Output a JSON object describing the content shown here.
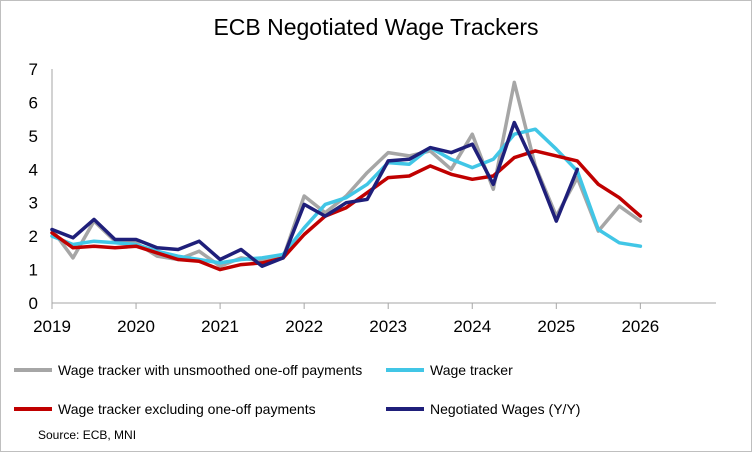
{
  "chart_data": {
    "type": "line",
    "title": "ECB Negotiated Wage Trackers",
    "source": "Source: ECB, MNI",
    "xlim": [
      2019,
      2026.9
    ],
    "ylim": [
      0,
      7
    ],
    "yticks": [
      "0",
      "1",
      "2",
      "3",
      "4",
      "5",
      "6",
      "7"
    ],
    "xticks": [
      {
        "value": 2019,
        "label": "2019"
      },
      {
        "value": 2020,
        "label": "2020"
      },
      {
        "value": 2021,
        "label": "2021"
      },
      {
        "value": 2022,
        "label": "2022"
      },
      {
        "value": 2023,
        "label": "2023"
      },
      {
        "value": 2024,
        "label": "2024"
      },
      {
        "value": 2025,
        "label": "2025"
      },
      {
        "value": 2026,
        "label": "2026"
      }
    ],
    "grid": false,
    "legend_position": "bottom",
    "series": [
      {
        "name": "Wage tracker with unsmoothed one-off payments",
        "color": "#a6a6a6",
        "x": [
          2019.0,
          2019.25,
          2019.5,
          2019.75,
          2020.0,
          2020.25,
          2020.5,
          2020.75,
          2021.0,
          2021.25,
          2021.5,
          2021.75,
          2022.0,
          2022.25,
          2022.5,
          2022.75,
          2023.0,
          2023.25,
          2023.5,
          2023.75,
          2024.0,
          2024.25,
          2024.5,
          2024.75,
          2025.0,
          2025.25,
          2025.5,
          2025.75,
          2026.0
        ],
        "y": [
          2.2,
          1.35,
          2.45,
          1.85,
          1.8,
          1.4,
          1.3,
          1.55,
          1.1,
          1.35,
          1.25,
          1.35,
          3.2,
          2.7,
          3.2,
          3.9,
          4.5,
          4.4,
          4.55,
          4.0,
          5.05,
          3.4,
          6.6,
          4.1,
          2.6,
          3.75,
          2.15,
          2.9,
          2.45
        ]
      },
      {
        "name": "Wage tracker",
        "color": "#41c6e6",
        "x": [
          2019.0,
          2019.25,
          2019.5,
          2019.75,
          2020.0,
          2020.25,
          2020.5,
          2020.75,
          2021.0,
          2021.25,
          2021.5,
          2021.75,
          2022.0,
          2022.25,
          2022.5,
          2022.75,
          2023.0,
          2023.25,
          2023.5,
          2023.75,
          2024.0,
          2024.25,
          2024.5,
          2024.75,
          2025.0,
          2025.25,
          2025.5,
          2025.75,
          2026.0
        ],
        "y": [
          2.0,
          1.75,
          1.85,
          1.8,
          1.75,
          1.55,
          1.4,
          1.3,
          1.2,
          1.3,
          1.35,
          1.45,
          2.25,
          2.95,
          3.15,
          3.55,
          4.2,
          4.15,
          4.65,
          4.3,
          4.05,
          4.3,
          5.05,
          5.2,
          4.6,
          3.95,
          2.2,
          1.8,
          1.7
        ]
      },
      {
        "name": "Wage tracker excluding one-off payments",
        "color": "#c00000",
        "x": [
          2019.0,
          2019.25,
          2019.5,
          2019.75,
          2020.0,
          2020.25,
          2020.5,
          2020.75,
          2021.0,
          2021.25,
          2021.5,
          2021.75,
          2022.0,
          2022.25,
          2022.5,
          2022.75,
          2023.0,
          2023.25,
          2023.5,
          2023.75,
          2024.0,
          2024.25,
          2024.5,
          2024.75,
          2025.0,
          2025.25,
          2025.5,
          2025.75,
          2026.0
        ],
        "y": [
          2.1,
          1.65,
          1.7,
          1.65,
          1.7,
          1.5,
          1.3,
          1.25,
          1.0,
          1.15,
          1.2,
          1.35,
          2.05,
          2.6,
          2.85,
          3.3,
          3.75,
          3.8,
          4.1,
          3.85,
          3.7,
          3.8,
          4.35,
          4.55,
          4.4,
          4.25,
          3.55,
          3.15,
          2.6
        ]
      },
      {
        "name": "Negotiated Wages (Y/Y)",
        "color": "#1f1f7a",
        "x": [
          2019.0,
          2019.25,
          2019.5,
          2019.75,
          2020.0,
          2020.25,
          2020.5,
          2020.75,
          2021.0,
          2021.25,
          2021.5,
          2021.75,
          2022.0,
          2022.25,
          2022.5,
          2022.75,
          2023.0,
          2023.25,
          2023.5,
          2023.75,
          2024.0,
          2024.25,
          2024.5,
          2024.75,
          2025.0,
          2025.25
        ],
        "y": [
          2.2,
          1.95,
          2.5,
          1.9,
          1.9,
          1.65,
          1.6,
          1.85,
          1.3,
          1.6,
          1.1,
          1.35,
          2.95,
          2.6,
          3.0,
          3.1,
          4.25,
          4.3,
          4.65,
          4.5,
          4.75,
          3.55,
          5.4,
          4.05,
          2.45,
          4.0
        ]
      }
    ]
  }
}
